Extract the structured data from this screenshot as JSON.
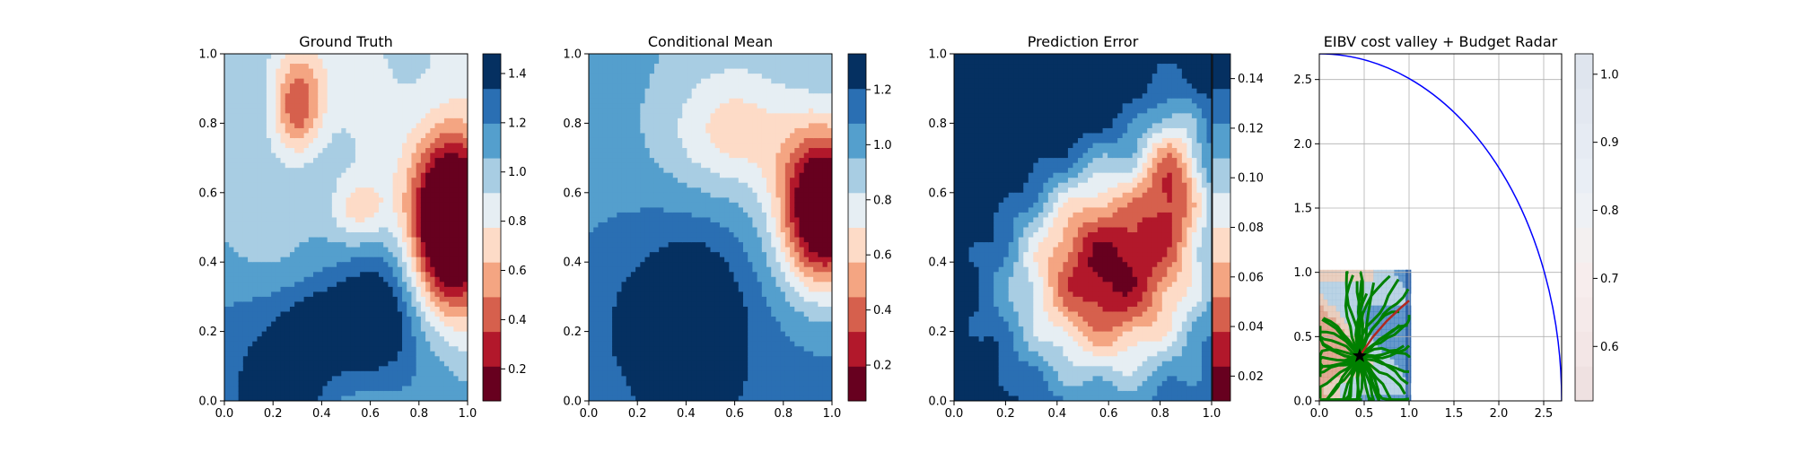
{
  "figure": {
    "panel_titles": [
      "Ground Truth",
      "Conditional Mean",
      "Prediction Error",
      "EIBV cost valley + Budget Radar"
    ]
  },
  "chart_data": [
    {
      "type": "heatmap",
      "title": "Ground Truth",
      "colormap": "RdBu",
      "xlim": [
        0,
        1
      ],
      "ylim": [
        0,
        1
      ],
      "xticks": [
        "0.0",
        "0.2",
        "0.4",
        "0.6",
        "0.8",
        "1.0"
      ],
      "yticks": [
        "0.0",
        "0.2",
        "0.4",
        "0.6",
        "0.8",
        "1.0"
      ],
      "colorbar": {
        "min": 0.07,
        "max": 1.48,
        "ticks": [
          0.2,
          0.4,
          0.6,
          0.8,
          1.0,
          1.2,
          1.4
        ],
        "tick_labels": [
          "0.2",
          "0.4",
          "0.6",
          "0.8",
          "1.0",
          "1.2",
          "1.4"
        ]
      },
      "features": [
        {
          "kind": "trough",
          "x": 0.92,
          "y": 0.53,
          "value": 0.1,
          "rx": 0.16,
          "ry": 0.28
        },
        {
          "kind": "peak",
          "x": 0.22,
          "y": 0.02,
          "value": 1.45,
          "rx": 0.14,
          "ry": 0.1
        },
        {
          "kind": "peak",
          "x": 0.45,
          "y": 0.22,
          "value": 1.2,
          "rx": 0.3,
          "ry": 0.18
        },
        {
          "kind": "mild",
          "x": 0.3,
          "y": 0.85,
          "value": 0.7,
          "rx": 0.12,
          "ry": 0.15
        }
      ]
    },
    {
      "type": "heatmap",
      "title": "Conditional Mean",
      "colormap": "RdBu",
      "xlim": [
        0,
        1
      ],
      "ylim": [
        0,
        1
      ],
      "xticks": [
        "0.0",
        "0.2",
        "0.4",
        "0.6",
        "0.8",
        "1.0"
      ],
      "yticks": [
        "0.0",
        "0.2",
        "0.4",
        "0.6",
        "0.8",
        "1.0"
      ],
      "colorbar": {
        "min": 0.07,
        "max": 1.33,
        "ticks": [
          0.2,
          0.4,
          0.6,
          0.8,
          1.0,
          1.2
        ],
        "tick_labels": [
          "0.2",
          "0.4",
          "0.6",
          "0.8",
          "1.0",
          "1.2"
        ]
      },
      "features": [
        {
          "kind": "trough",
          "x": 0.95,
          "y": 0.55,
          "value": 0.12,
          "rx": 0.2,
          "ry": 0.25
        },
        {
          "kind": "peak",
          "x": 0.44,
          "y": 0.17,
          "value": 1.3,
          "rx": 0.12,
          "ry": 0.18
        }
      ]
    },
    {
      "type": "heatmap",
      "title": "Prediction Error",
      "colormap": "RdBu",
      "xlim": [
        0,
        1
      ],
      "ylim": [
        0,
        1
      ],
      "xticks": [
        "0.0",
        "0.2",
        "0.4",
        "0.6",
        "0.8",
        "1.0"
      ],
      "yticks": [
        "0.0",
        "0.2",
        "0.4",
        "0.6",
        "0.8",
        "1.0"
      ],
      "colorbar": {
        "min": 0.01,
        "max": 0.15,
        "ticks": [
          0.02,
          0.04,
          0.06,
          0.08,
          0.1,
          0.12,
          0.14
        ],
        "tick_labels": [
          "0.02",
          "0.04",
          "0.06",
          "0.08",
          "0.10",
          "0.12",
          "0.14"
        ]
      },
      "features": [
        {
          "kind": "high",
          "x": 0.0,
          "y": 1.0,
          "value": 0.15
        },
        {
          "kind": "low_region",
          "x": 0.6,
          "y": 0.4,
          "value": 0.03
        }
      ]
    },
    {
      "type": "heatmap",
      "title": "EIBV cost valley + Budget Radar",
      "xlim": [
        0,
        2.7
      ],
      "ylim": [
        0,
        2.7
      ],
      "xticks": [
        "0.0",
        "0.5",
        "1.0",
        "1.5",
        "2.0",
        "2.5"
      ],
      "yticks": [
        "0.0",
        "0.5",
        "1.0",
        "1.5",
        "2.0",
        "2.5"
      ],
      "grid": true,
      "colorbar": {
        "min": 0.52,
        "max": 1.03,
        "ticks": [
          0.6,
          0.7,
          0.8,
          0.9,
          1.0
        ],
        "tick_labels": [
          "0.6",
          "0.7",
          "0.8",
          "0.9",
          "1.0"
        ]
      },
      "field_extent": [
        0,
        1.02,
        0,
        1.02
      ],
      "budget_radius": 2.7,
      "current_location": [
        0.45,
        0.35
      ],
      "colors": {
        "radar": "#0000ff",
        "paths": "#008000",
        "best_path": "#b0281e",
        "marker": "#000000"
      }
    }
  ]
}
